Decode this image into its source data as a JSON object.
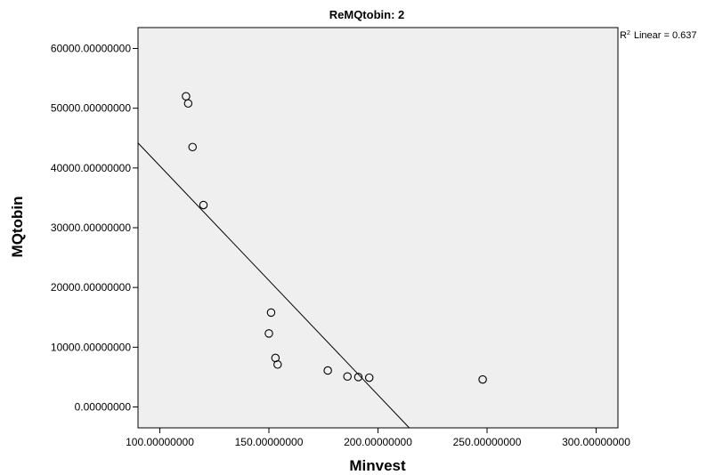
{
  "chart_data": {
    "type": "scatter",
    "title": "ReMQtobin: 2",
    "xlabel": "Minvest",
    "ylabel": "MQtobin",
    "xlim": [
      90,
      310
    ],
    "ylim": [
      -3500,
      63500
    ],
    "x_ticks": [
      100,
      150,
      200,
      250,
      300
    ],
    "x_tick_labels": [
      "100.00000000",
      "150.00000000",
      "200.00000000",
      "250.00000000",
      "300.00000000"
    ],
    "y_ticks": [
      0,
      10000,
      20000,
      30000,
      40000,
      50000,
      60000
    ],
    "y_tick_labels": [
      "0.00000000",
      "10000.00000000",
      "20000.00000000",
      "30000.00000000",
      "40000.00000000",
      "50000.00000000",
      "60000.00000000"
    ],
    "points": [
      {
        "x": 112,
        "y": 52000
      },
      {
        "x": 113,
        "y": 50800
      },
      {
        "x": 115,
        "y": 43500
      },
      {
        "x": 120,
        "y": 33800
      },
      {
        "x": 151,
        "y": 15800
      },
      {
        "x": 150,
        "y": 12300
      },
      {
        "x": 153,
        "y": 8200
      },
      {
        "x": 154,
        "y": 7100
      },
      {
        "x": 177,
        "y": 6100
      },
      {
        "x": 186,
        "y": 5100
      },
      {
        "x": 191,
        "y": 5000
      },
      {
        "x": 196,
        "y": 4900
      },
      {
        "x": 248,
        "y": 4600
      }
    ],
    "fit_line": {
      "slope": -383.5,
      "intercept": 78700
    },
    "r2_label": "Linear = 0.637",
    "r2_prefix": "R",
    "r2_superscript": "2",
    "grid": false,
    "colors": {
      "plot_bg": "#efefef",
      "marker": "#000000",
      "line": "#000000"
    }
  }
}
